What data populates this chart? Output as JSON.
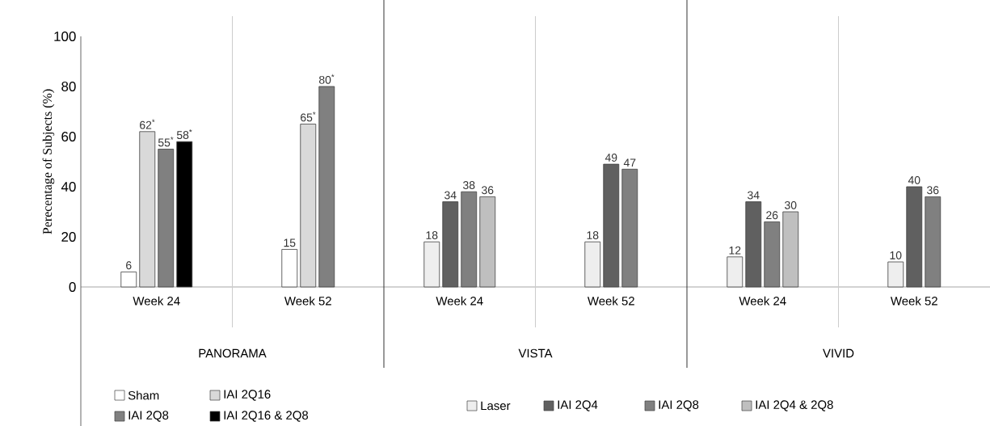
{
  "chart_data": {
    "type": "bar",
    "ylabel": "Perecentage of Subjects (%)",
    "categories": [
      "Week 24",
      "Week 52",
      "Week 24",
      "Week 52",
      "Week 24",
      "Week 52"
    ],
    "annotations": [
      "PANORAMA",
      "VISTA",
      "VIVID"
    ],
    "series": [
      {
        "name": "Sham",
        "color": "#ffffff",
        "values": [
          6,
          15,
          null,
          null,
          null,
          null
        ],
        "value_labels": [
          "6",
          "15",
          null,
          null,
          null,
          null
        ]
      },
      {
        "name": "IAI 2Q16",
        "color": "#d9d9d9",
        "values": [
          62,
          65,
          null,
          null,
          null,
          null
        ],
        "value_labels": [
          "62$^{*}$",
          "65$^{*}$",
          null,
          null,
          null,
          null
        ]
      },
      {
        "name": "Laser",
        "color": "#eeeeee",
        "values": [
          null,
          null,
          18,
          18,
          12,
          10
        ],
        "value_labels": [
          null,
          null,
          "18",
          "18",
          "12",
          "10"
        ]
      },
      {
        "name": "IAI 2Q4",
        "color": "#606060",
        "values": [
          null,
          null,
          34,
          49,
          34,
          40
        ],
        "value_labels": [
          null,
          null,
          "34",
          "49",
          "34",
          "40"
        ]
      },
      {
        "name": "IAI 2Q8",
        "color": "#808080",
        "values": [
          55,
          80,
          38,
          47,
          26,
          36
        ],
        "value_labels": [
          "55$^{*}$",
          "80$^{*}$",
          "38",
          "47",
          "26",
          "36"
        ]
      },
      {
        "name": "IAI 2Q16 & 2Q8",
        "color": "#000000",
        "values": [
          58,
          null,
          null,
          null,
          null,
          null
        ],
        "value_labels": [
          "58$^{*}$",
          null,
          null,
          null,
          null,
          null
        ]
      },
      {
        "name": "IAI 2Q4 & 2Q8",
        "color": "#bfbfbf",
        "values": [
          null,
          null,
          36,
          null,
          30,
          null
        ],
        "value_labels": [
          null,
          null,
          "36",
          null,
          "30",
          null
        ]
      }
    ],
    "ylim": [
      0,
      100
    ],
    "yticks": [
      0,
      20,
      40,
      60,
      80,
      100
    ],
    "legend": "bottom"
  }
}
